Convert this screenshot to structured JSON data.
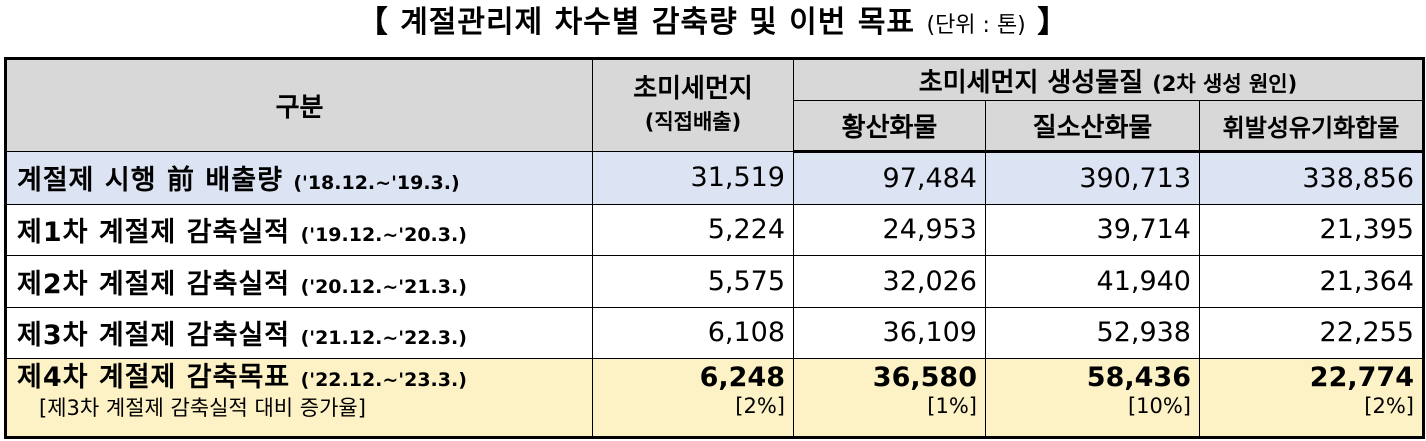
{
  "title": {
    "main": "【 계절관리제 차수별 감축량 및 이번 목표",
    "unit": "(단위 : 톤)",
    "close": "】"
  },
  "headers": {
    "category": "구분",
    "pm_direct": "초미세먼지",
    "pm_direct_sub": "(직접배출)",
    "precursor_group": "초미세먼지 생성물질",
    "precursor_group_note": "(2차 생성 원인)",
    "sox": "황산화물",
    "nox": "질소산화물",
    "voc": "휘발성유기화합물"
  },
  "rows": [
    {
      "label": "계절제 시행 前 배출량",
      "period": "('18.12.~'19.3.)",
      "pm": "31,519",
      "sox": "97,484",
      "nox": "390,713",
      "voc": "338,856"
    },
    {
      "label": "제1차 계절제 감축실적",
      "period": "('19.12.~'20.3.)",
      "pm": "5,224",
      "sox": "24,953",
      "nox": "39,714",
      "voc": "21,395"
    },
    {
      "label": "제2차 계절제 감축실적",
      "period": "('20.12.~'21.3.)",
      "pm": "5,575",
      "sox": "32,026",
      "nox": "41,940",
      "voc": "21,364"
    },
    {
      "label": "제3차 계절제 감축실적",
      "period": "('21.12.~'22.3.)",
      "pm": "6,108",
      "sox": "36,109",
      "nox": "52,938",
      "voc": "22,255"
    }
  ],
  "target": {
    "label": "제4차 계절제 감축목표",
    "period": "('22.12.~'23.3.)",
    "note": "[제3차 계절제 감축실적 대비 증가율]",
    "pm": "6,248",
    "pm_rate": "[2%]",
    "sox": "36,580",
    "sox_rate": "[1%]",
    "nox": "58,436",
    "nox_rate": "[10%]",
    "voc": "22,774",
    "voc_rate": "[2%]"
  }
}
